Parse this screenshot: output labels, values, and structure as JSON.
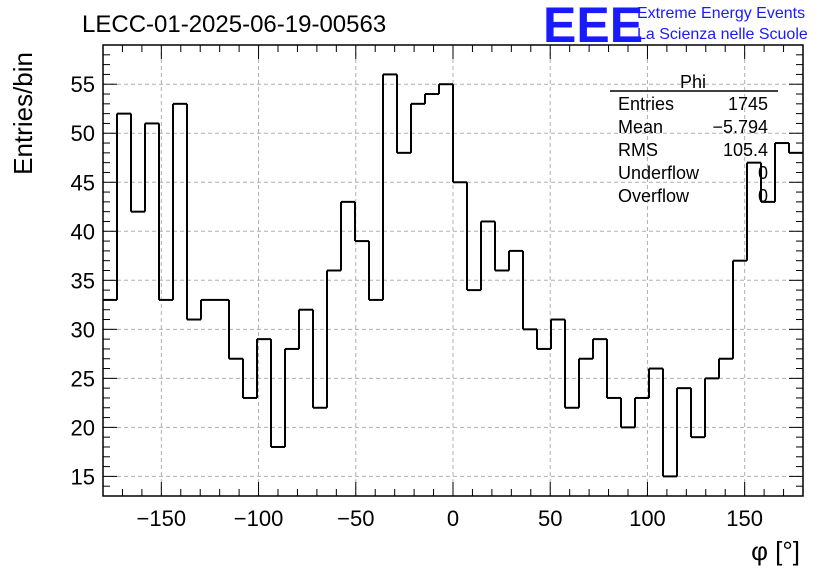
{
  "chart_data": {
    "type": "bar",
    "title": "LECC-01-2025-06-19-00563",
    "xlabel": "φ [°]",
    "ylabel": "Entries/bin",
    "xlim": [
      -180,
      180
    ],
    "ylim": [
      13,
      59
    ],
    "xticks": [
      -150,
      -100,
      -50,
      0,
      50,
      100,
      150
    ],
    "yticks": [
      15,
      20,
      25,
      30,
      35,
      40,
      45,
      50,
      55
    ],
    "grid": true,
    "histogram_style": "step",
    "bin_edges_start": -180,
    "bin_width": 7.2,
    "values": [
      33,
      52,
      42,
      51,
      33,
      53,
      31,
      33,
      33,
      27,
      23,
      29,
      18,
      28,
      32,
      22,
      36,
      43,
      39,
      33,
      56,
      48,
      53,
      54,
      55,
      45,
      34,
      41,
      36,
      38,
      30,
      28,
      31,
      22,
      27,
      29,
      23,
      20,
      23,
      26,
      15,
      24,
      19,
      25,
      27,
      37,
      47,
      43,
      49,
      48
    ],
    "stats_box": {
      "title": "Phi",
      "rows": [
        {
          "label": "Entries",
          "value": "1745"
        },
        {
          "label": "Mean",
          "value": "−5.794"
        },
        {
          "label": "RMS",
          "value": "105.4"
        },
        {
          "label": "Underflow",
          "value": "0"
        },
        {
          "label": "Overflow",
          "value": "0"
        }
      ]
    }
  },
  "logo": {
    "mark": "EEE",
    "line1": "Extreme Energy Events",
    "line2": "La Scienza nelle Scuole"
  },
  "colors": {
    "line": "#000000",
    "grid": "#b0b0b0",
    "logo": "#1a1aff"
  }
}
